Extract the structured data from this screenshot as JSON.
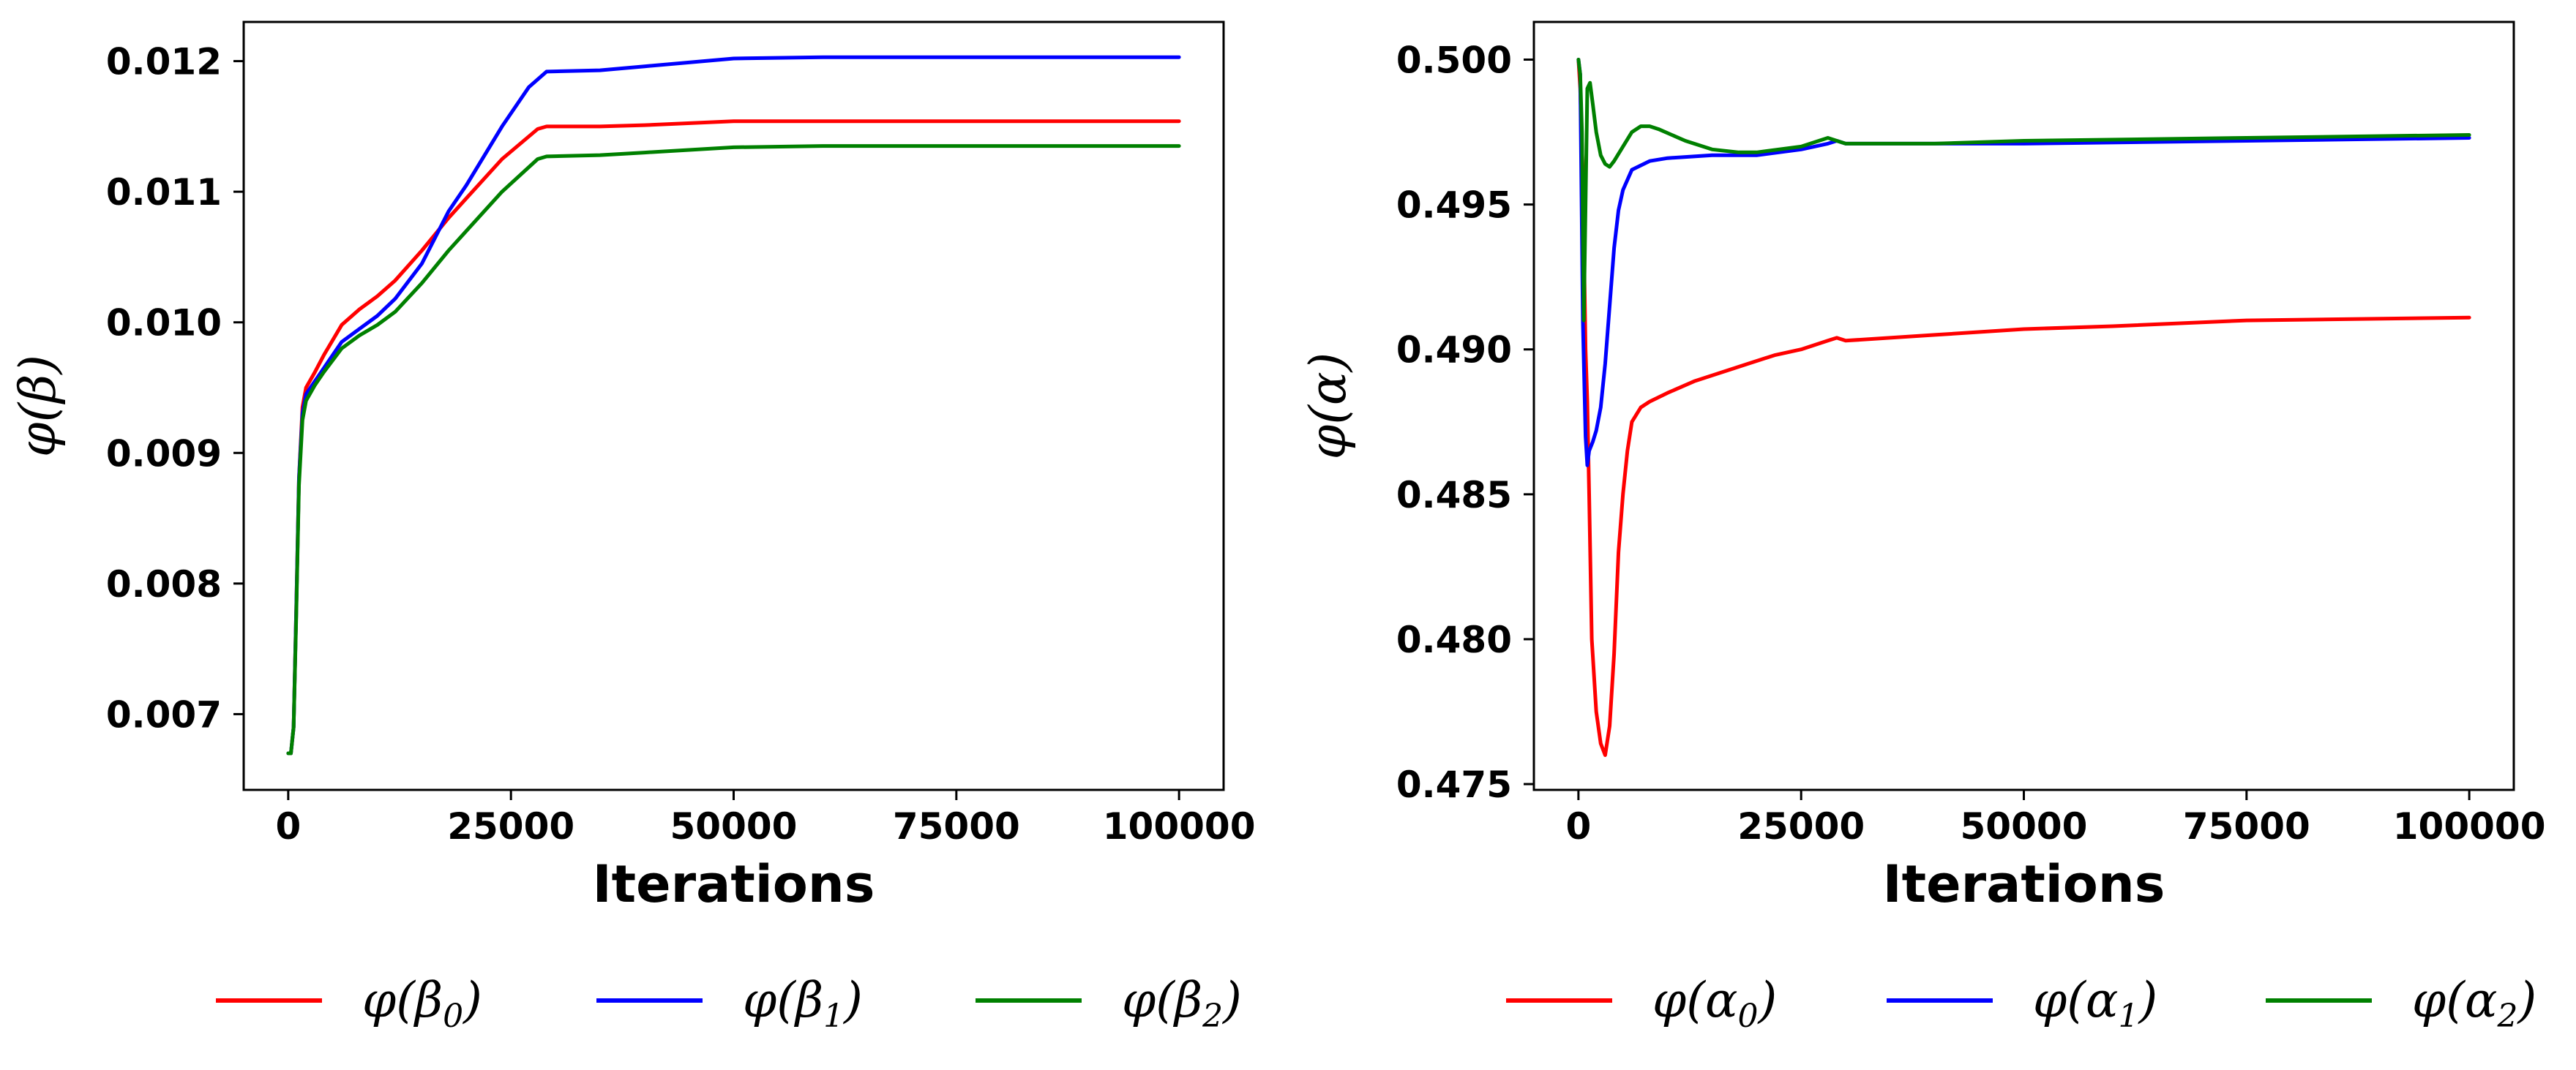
{
  "chart_data": [
    {
      "type": "line",
      "id": "beta",
      "xlabel": "Iterations",
      "ylabel": "φ(β)",
      "xlim": [
        -5000,
        105000
      ],
      "ylim": [
        0.00642,
        0.0123
      ],
      "xticks": [
        0,
        25000,
        50000,
        75000,
        100000
      ],
      "xtick_labels": [
        "0",
        "25000",
        "50000",
        "75000",
        "100000"
      ],
      "yticks": [
        0.007,
        0.008,
        0.009,
        0.01,
        0.011,
        0.012
      ],
      "ytick_labels": [
        "0.007",
        "0.008",
        "0.009",
        "0.010",
        "0.011",
        "0.012"
      ],
      "legend_position": "bottom",
      "series": [
        {
          "name": "φ(β0)",
          "base": "φ(β",
          "sub": "0",
          "color": "#ff0000",
          "x": [
            0,
            300,
            600,
            900,
            1200,
            1600,
            2000,
            3000,
            4000,
            6000,
            8000,
            10000,
            12000,
            15000,
            18000,
            20000,
            24000,
            28000,
            29000,
            35000,
            40000,
            50000,
            60000,
            75000,
            100000
          ],
          "y": [
            0.0067,
            0.0067,
            0.0069,
            0.0078,
            0.0088,
            0.00935,
            0.0095,
            0.00962,
            0.00975,
            0.00998,
            0.0101,
            0.0102,
            0.01032,
            0.01055,
            0.0108,
            0.01095,
            0.01125,
            0.01148,
            0.0115,
            0.0115,
            0.01151,
            0.01154,
            0.01154,
            0.01154,
            0.01154
          ]
        },
        {
          "name": "φ(β1)",
          "base": "φ(β",
          "sub": "1",
          "color": "#0000ff",
          "x": [
            0,
            300,
            600,
            900,
            1200,
            1600,
            2000,
            3000,
            4000,
            6000,
            8000,
            10000,
            12000,
            15000,
            18000,
            20000,
            24000,
            27000,
            29000,
            35000,
            40000,
            50000,
            60000,
            75000,
            100000
          ],
          "y": [
            0.0067,
            0.0067,
            0.0069,
            0.0078,
            0.0088,
            0.0093,
            0.00945,
            0.00955,
            0.00965,
            0.00985,
            0.00995,
            0.01005,
            0.01018,
            0.01045,
            0.01085,
            0.01105,
            0.0115,
            0.0118,
            0.01192,
            0.01193,
            0.01196,
            0.01202,
            0.01203,
            0.01203,
            0.01203
          ]
        },
        {
          "name": "φ(β2)",
          "base": "φ(β",
          "sub": "2",
          "color": "#008000",
          "x": [
            0,
            300,
            600,
            900,
            1200,
            1600,
            2000,
            3000,
            4000,
            6000,
            8000,
            10000,
            12000,
            15000,
            18000,
            20000,
            24000,
            28000,
            29000,
            35000,
            40000,
            50000,
            60000,
            75000,
            100000
          ],
          "y": [
            0.0067,
            0.0067,
            0.0069,
            0.00775,
            0.00875,
            0.00925,
            0.0094,
            0.00952,
            0.00962,
            0.0098,
            0.0099,
            0.00998,
            0.01008,
            0.0103,
            0.01055,
            0.0107,
            0.011,
            0.01125,
            0.01127,
            0.01128,
            0.0113,
            0.01134,
            0.01135,
            0.01135,
            0.01135
          ]
        }
      ]
    },
    {
      "type": "line",
      "id": "alpha",
      "xlabel": "Iterations",
      "ylabel": "φ(α)",
      "xlim": [
        -5000,
        105000
      ],
      "ylim": [
        0.4748,
        0.5013
      ],
      "xticks": [
        0,
        25000,
        50000,
        75000,
        100000
      ],
      "xtick_labels": [
        "0",
        "25000",
        "50000",
        "75000",
        "100000"
      ],
      "yticks": [
        0.475,
        0.48,
        0.485,
        0.49,
        0.495,
        0.5
      ],
      "ytick_labels": [
        "0.475",
        "0.480",
        "0.485",
        "0.490",
        "0.495",
        "0.500"
      ],
      "legend_position": "bottom",
      "series": [
        {
          "name": "φ(α0)",
          "base": "φ(α",
          "sub": "0",
          "color": "#ff0000",
          "x": [
            0,
            200,
            500,
            800,
            1000,
            1200,
            1500,
            2000,
            2500,
            3000,
            3500,
            4000,
            4500,
            5000,
            5500,
            6000,
            7000,
            8000,
            10000,
            13000,
            16000,
            19000,
            22000,
            25000,
            28000,
            29000,
            30000,
            40000,
            50000,
            60000,
            75000,
            100000
          ],
          "y": [
            0.5,
            0.499,
            0.496,
            0.49,
            0.4882,
            0.485,
            0.48,
            0.4775,
            0.4764,
            0.476,
            0.477,
            0.4795,
            0.483,
            0.485,
            0.4865,
            0.4875,
            0.488,
            0.4882,
            0.4885,
            0.4889,
            0.4892,
            0.4895,
            0.4898,
            0.49,
            0.4903,
            0.4904,
            0.4903,
            0.4905,
            0.4907,
            0.4908,
            0.491,
            0.4911
          ]
        },
        {
          "name": "φ(α1)",
          "base": "φ(α",
          "sub": "1",
          "color": "#0000ff",
          "x": [
            0,
            200,
            500,
            800,
            1000,
            1200,
            1600,
            2000,
            2500,
            3000,
            3500,
            4000,
            4500,
            5000,
            6000,
            8000,
            10000,
            15000,
            20000,
            25000,
            28000,
            29000,
            30000,
            40000,
            50000,
            75000,
            100000
          ],
          "y": [
            0.5,
            0.4995,
            0.491,
            0.487,
            0.486,
            0.4865,
            0.4868,
            0.4872,
            0.488,
            0.4895,
            0.4915,
            0.4935,
            0.4948,
            0.4955,
            0.4962,
            0.4965,
            0.4966,
            0.4967,
            0.4967,
            0.4969,
            0.4971,
            0.4972,
            0.4971,
            0.4971,
            0.4971,
            0.4972,
            0.4973
          ]
        },
        {
          "name": "φ(α2)",
          "base": "φ(α",
          "sub": "2",
          "color": "#008000",
          "x": [
            0,
            200,
            400,
            600,
            800,
            1000,
            1300,
            1600,
            2000,
            2500,
            3000,
            3500,
            4000,
            5000,
            6000,
            7000,
            8000,
            9000,
            12000,
            15000,
            18000,
            20000,
            25000,
            28000,
            29000,
            30000,
            40000,
            50000,
            75000,
            100000
          ],
          "y": [
            0.5,
            0.4995,
            0.4975,
            0.491,
            0.495,
            0.499,
            0.4992,
            0.4985,
            0.4975,
            0.4967,
            0.4964,
            0.4963,
            0.4965,
            0.497,
            0.4975,
            0.4977,
            0.4977,
            0.4976,
            0.4972,
            0.4969,
            0.4968,
            0.4968,
            0.497,
            0.4973,
            0.4972,
            0.4971,
            0.4971,
            0.4972,
            0.4973,
            0.4974
          ]
        }
      ]
    }
  ]
}
